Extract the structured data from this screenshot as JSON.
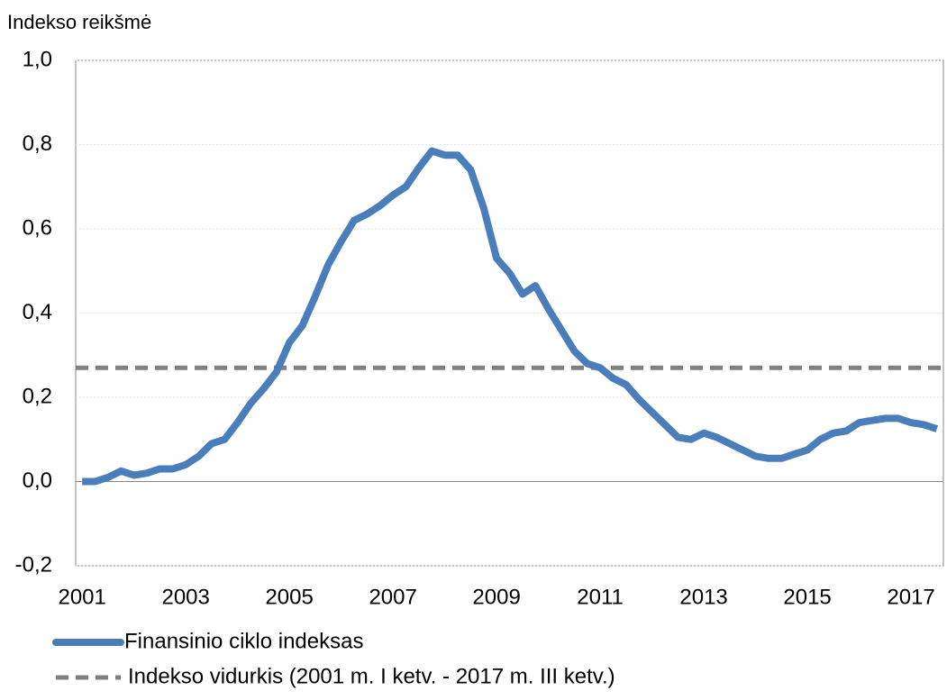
{
  "chart_data": {
    "type": "line",
    "y_label": "Indekso reikšmė",
    "categories": [
      "2001",
      null,
      null,
      null,
      null,
      null,
      null,
      null,
      "2003",
      null,
      null,
      null,
      null,
      null,
      null,
      null,
      "2005",
      null,
      null,
      null,
      null,
      null,
      null,
      null,
      "2007",
      null,
      null,
      null,
      null,
      null,
      null,
      null,
      "2009",
      null,
      null,
      null,
      null,
      null,
      null,
      null,
      "2011",
      null,
      null,
      null,
      null,
      null,
      null,
      null,
      "2013",
      null,
      null,
      null,
      null,
      null,
      null,
      null,
      "2015",
      null,
      null,
      null,
      null,
      null,
      null,
      null,
      "2017",
      null,
      null
    ],
    "series": [
      {
        "name": "Finansinio ciklo indeksas",
        "color": "#4a7ebb",
        "values": [
          0.0,
          0.0,
          0.01,
          0.025,
          0.015,
          0.02,
          0.03,
          0.03,
          0.04,
          0.06,
          0.09,
          0.1,
          0.14,
          0.185,
          0.22,
          0.26,
          0.33,
          0.37,
          0.44,
          0.515,
          0.57,
          0.62,
          0.635,
          0.655,
          0.68,
          0.7,
          0.745,
          0.785,
          0.775,
          0.775,
          0.74,
          0.65,
          0.53,
          0.495,
          0.445,
          0.465,
          0.41,
          0.36,
          0.31,
          0.28,
          0.27,
          0.245,
          0.23,
          0.195,
          0.165,
          0.135,
          0.105,
          0.1,
          0.115,
          0.105,
          0.09,
          0.075,
          0.06,
          0.055,
          0.055,
          0.065,
          0.075,
          0.1,
          0.115,
          0.12,
          0.14,
          0.145,
          0.15,
          0.15,
          0.14,
          0.135,
          0.125
        ]
      }
    ],
    "reference_line": {
      "name": "Indekso vidurkis (2001 m. I ketv. - 2017 m. III ketv.)",
      "color": "#808080",
      "value": 0.27
    },
    "ylim": [
      -0.2,
      1.0
    ],
    "yticks": [
      {
        "value": -0.2,
        "label": "-0,2"
      },
      {
        "value": 0,
        "label": "0,0"
      },
      {
        "value": 0.2,
        "label": "0,2"
      },
      {
        "value": 0.4,
        "label": "0,4"
      },
      {
        "value": 0.6,
        "label": "0,6"
      },
      {
        "value": 0.8,
        "label": "0,8"
      },
      {
        "value": 1.0,
        "label": "1,0"
      }
    ],
    "grid": true
  }
}
